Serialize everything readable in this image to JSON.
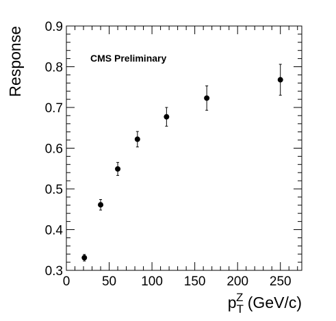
{
  "chart_data": {
    "type": "scatter",
    "annotation": "CMS Preliminary",
    "xlabel": {
      "base": "p",
      "sub": "T",
      "sup": "Z",
      "rest": " (GeV/c)"
    },
    "ylabel": "Response",
    "xlim": [
      0,
      275
    ],
    "ylim": [
      0.3,
      0.9
    ],
    "x_ticks": [
      0,
      50,
      100,
      150,
      200,
      250
    ],
    "y_ticks": [
      0.3,
      0.4,
      0.5,
      0.6,
      0.7,
      0.8,
      0.9
    ],
    "x_tick_labels": [
      "0",
      "50",
      "100",
      "150",
      "200",
      "250"
    ],
    "y_tick_labels": [
      "0.3",
      "0.4",
      "0.5",
      "0.6",
      "0.7",
      "0.8",
      "0.9"
    ],
    "grid": false,
    "points": [
      {
        "x": 21,
        "y": 0.331,
        "err": 0.008
      },
      {
        "x": 40,
        "y": 0.461,
        "err": 0.013
      },
      {
        "x": 60,
        "y": 0.549,
        "err": 0.016
      },
      {
        "x": 83,
        "y": 0.622,
        "err": 0.019
      },
      {
        "x": 117,
        "y": 0.677,
        "err": 0.023
      },
      {
        "x": 164,
        "y": 0.723,
        "err": 0.03
      },
      {
        "x": 250,
        "y": 0.768,
        "err": 0.038
      }
    ]
  }
}
